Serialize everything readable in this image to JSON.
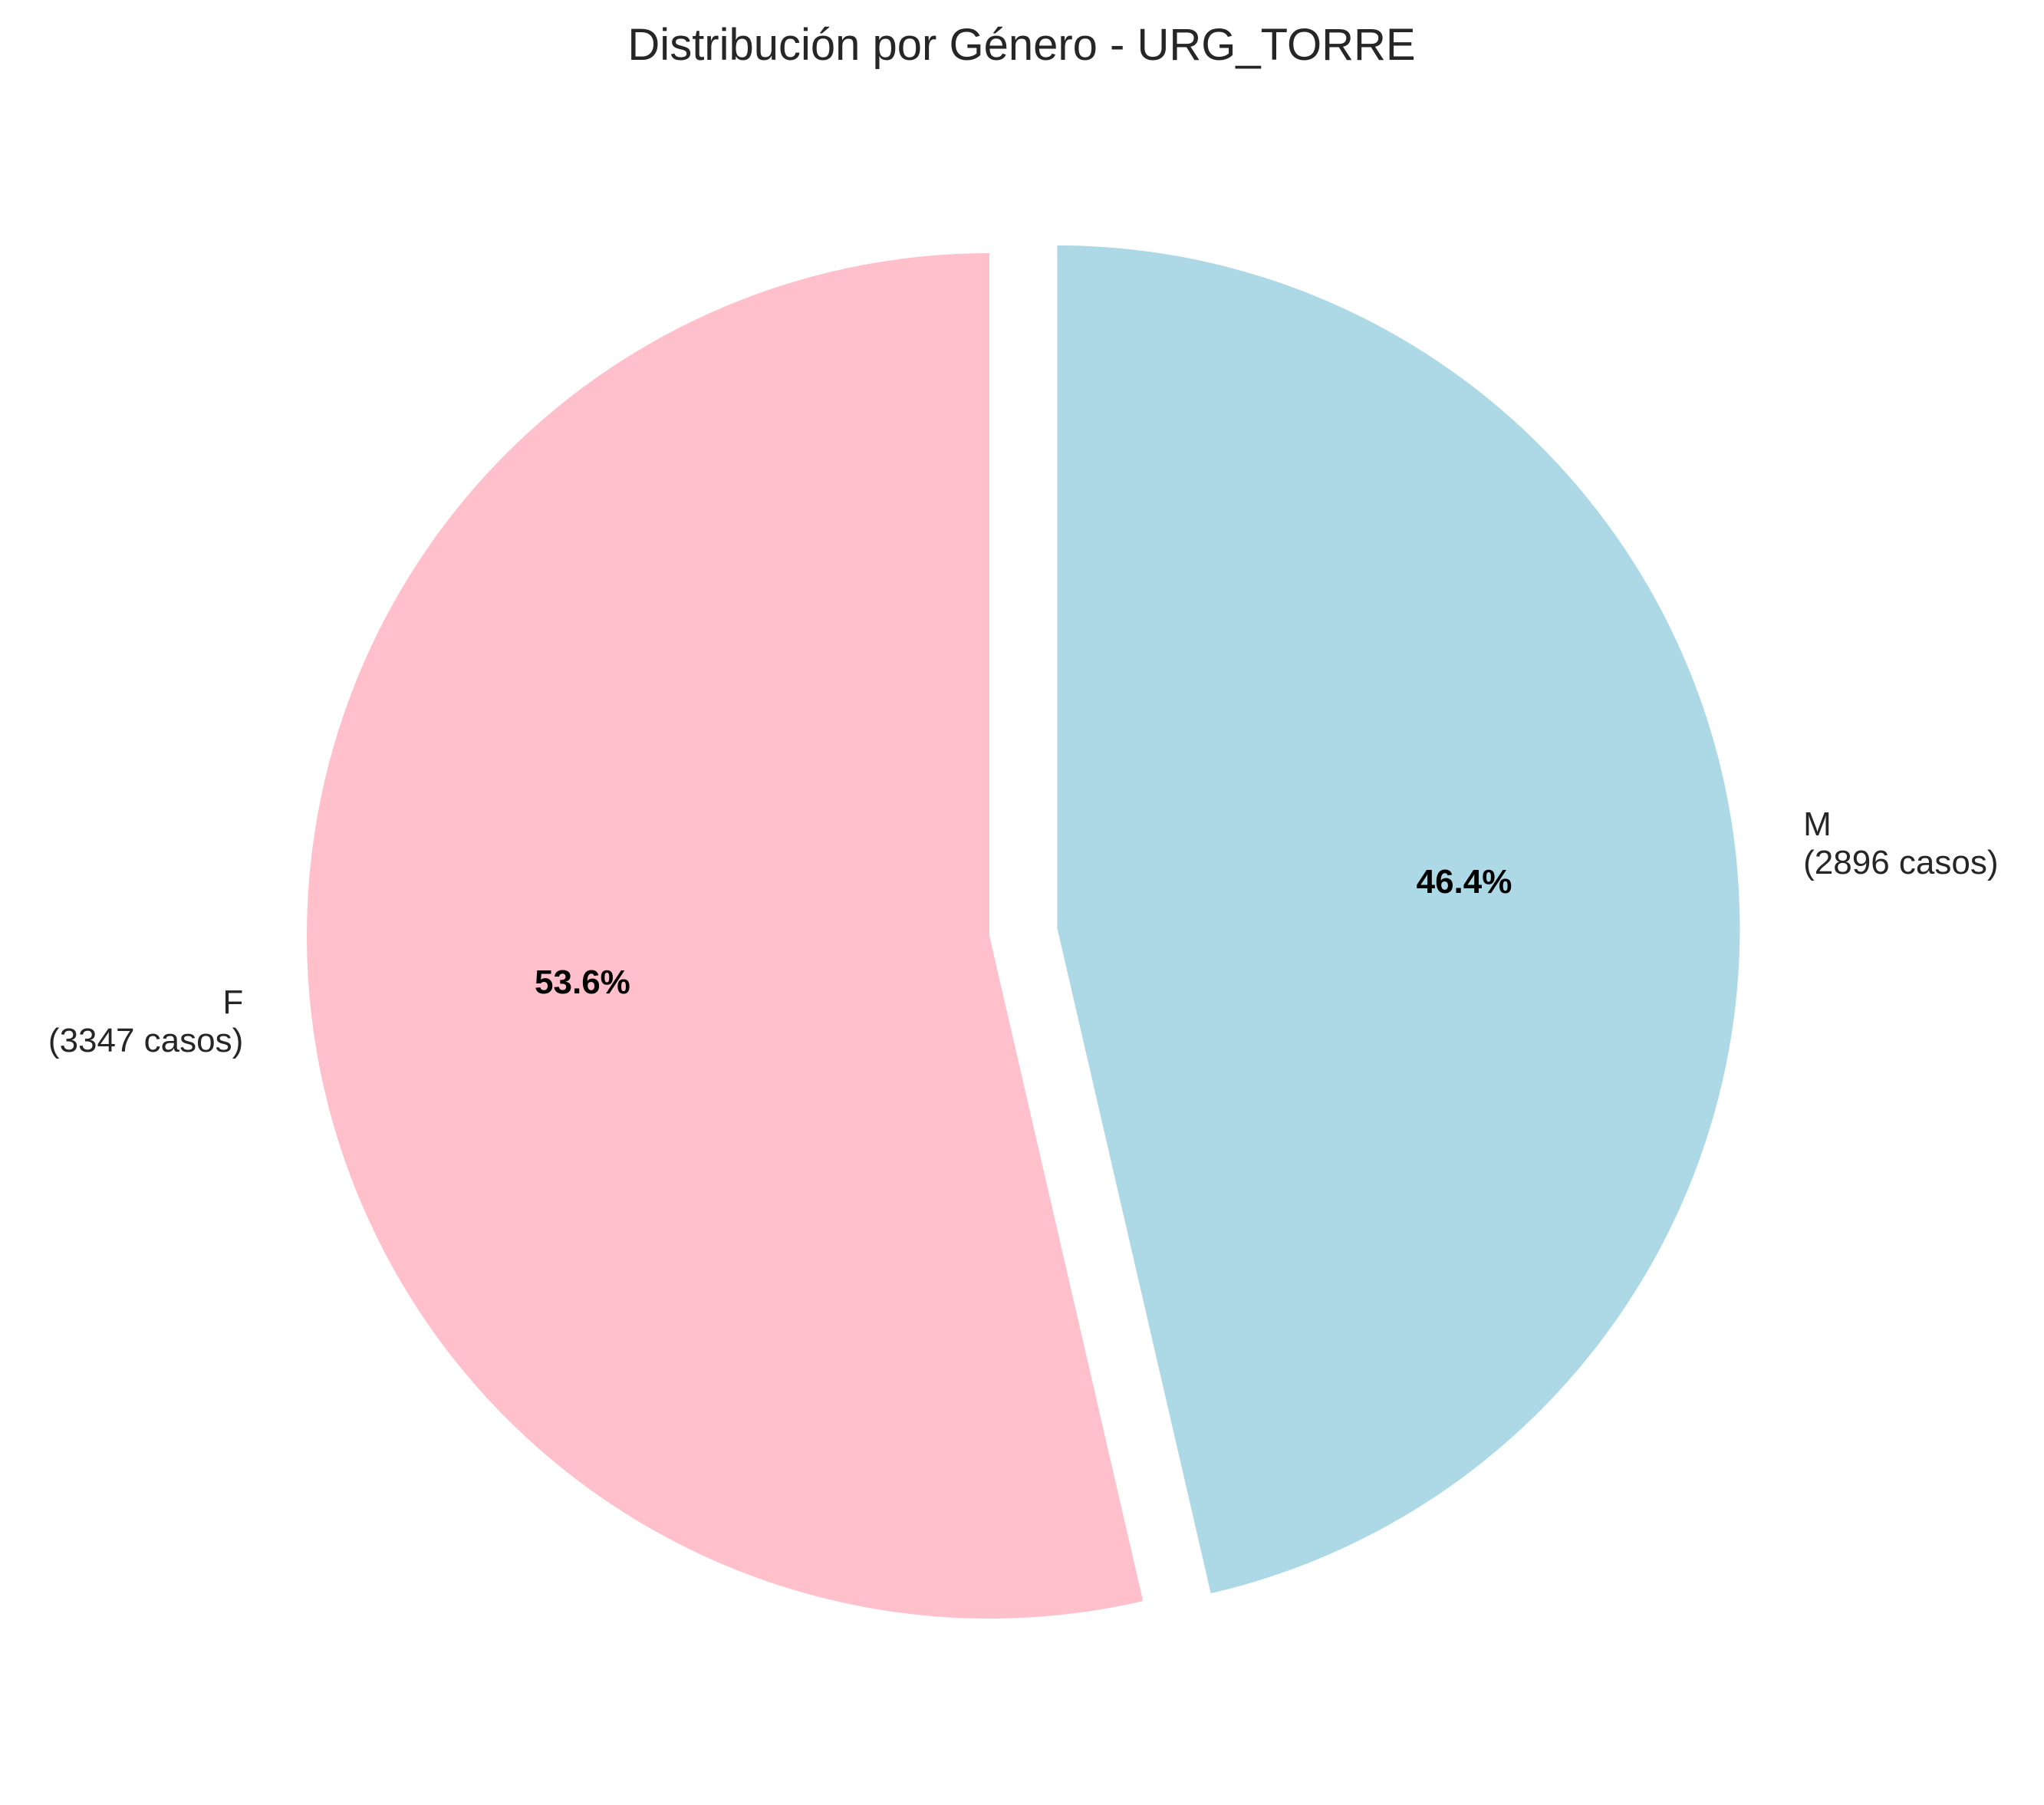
{
  "chart_data": {
    "type": "pie",
    "title": "Distribución por Género - URG_TORRE",
    "slices": [
      {
        "label": "F",
        "count_label": "(3347 casos)",
        "value": 3347,
        "percent_label": "53.6%",
        "color": "#ffc0cb",
        "exploded": false
      },
      {
        "label": "M",
        "count_label": "(2896 casos)",
        "value": 2896,
        "percent_label": "46.4%",
        "color": "#add8e6",
        "exploded": true
      }
    ],
    "start_angle": "top (12 o'clock)",
    "direction": "counterclockwise",
    "legend": "none"
  }
}
